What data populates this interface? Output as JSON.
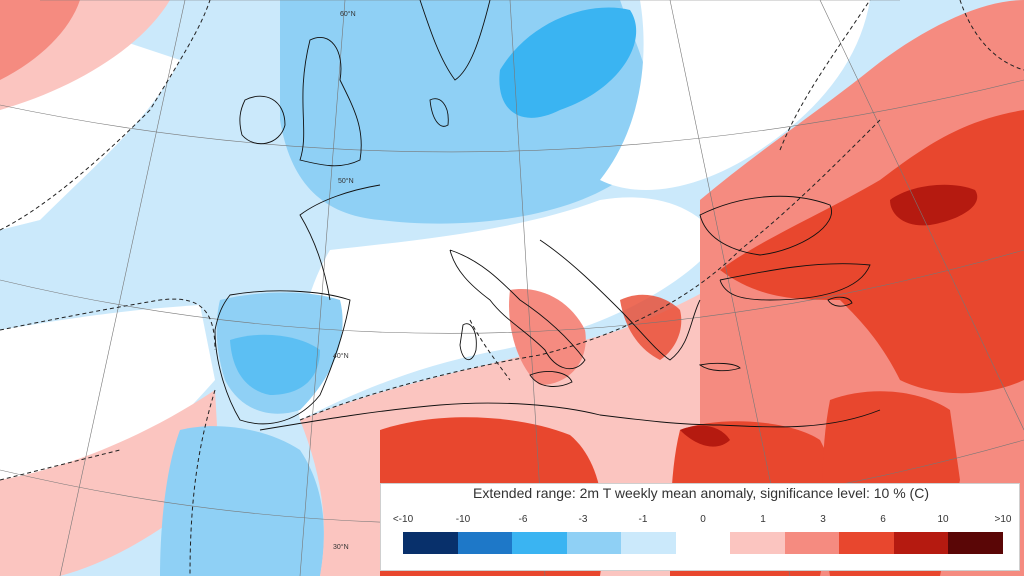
{
  "map": {
    "latitude_labels": [
      "60°N",
      "50°N",
      "40°N",
      "30°N"
    ]
  },
  "legend": {
    "title": "Extended range: 2m T weekly mean anomaly, significance level: 10 % (C)",
    "ticks": [
      "<-10",
      "-10",
      "-6",
      "-3",
      "-1",
      "0",
      "1",
      "3",
      "6",
      "10",
      ">10"
    ],
    "colors": [
      "#08306b",
      "#1e78c8",
      "#3ab4f2",
      "#8fd0f5",
      "#cbe9fb",
      "#ffffff",
      "#fbc5c0",
      "#f58b80",
      "#e8472e",
      "#b51a10",
      "#5a0606"
    ]
  }
}
